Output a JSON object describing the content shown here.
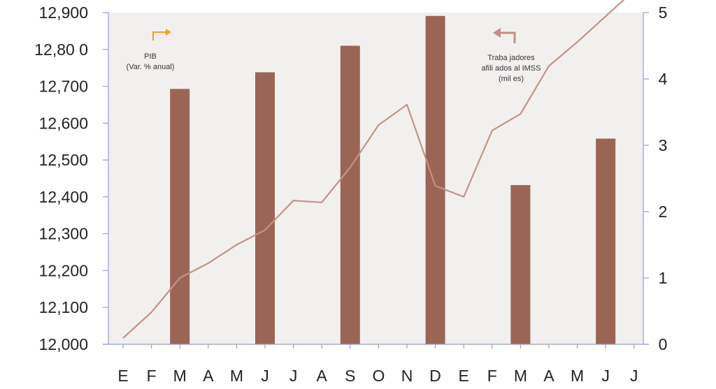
{
  "colors": {
    "plot_bg": "#f2f0ef",
    "axis": "#9b9ad6",
    "bar": "#9b6556",
    "line": "#c49284",
    "pib_arrow": "#f0a02a",
    "imss_arrow": "#c28e83",
    "tick_text": "#222222",
    "annotation_text": "#333333"
  },
  "chart_data": {
    "type": "bar",
    "categories": [
      "E",
      "F",
      "M",
      "A",
      "M",
      "J",
      "J",
      "A",
      "S",
      "O",
      "N",
      "D",
      "E",
      "F",
      "M",
      "A",
      "M",
      "J",
      "J"
    ],
    "series": [
      {
        "name": "PIB (Var. % anual)",
        "type": "bar",
        "axis": "right",
        "values": [
          null,
          null,
          3.85,
          null,
          null,
          4.1,
          null,
          null,
          4.5,
          null,
          null,
          4.95,
          null,
          null,
          2.4,
          null,
          null,
          3.1,
          null
        ]
      },
      {
        "name": "Trabajadores afiliados al IMSS (miles)",
        "type": "line",
        "axis": "left",
        "values": [
          12017,
          12087,
          12180,
          12220,
          12270,
          12310,
          12390,
          12385,
          12480,
          12595,
          12650,
          12430,
          12400,
          12580,
          12625,
          12755,
          12820,
          12890,
          12960
        ]
      }
    ],
    "left_axis": {
      "ylim": [
        12000,
        12900
      ],
      "ticks": [
        12000,
        12100,
        12200,
        12300,
        12400,
        12500,
        12600,
        12700,
        12800,
        12900
      ],
      "tick_labels": [
        "12,000",
        "12,100",
        "12,200",
        "12,300",
        "12,400",
        "12,500",
        "12,600",
        "12,700",
        "12,80 0",
        "12,900"
      ]
    },
    "right_axis": {
      "ylim": [
        0,
        5
      ],
      "ticks": [
        0,
        1,
        2,
        3,
        4,
        5
      ],
      "tick_labels": [
        "0",
        "1",
        "2",
        "3",
        "4",
        "5"
      ]
    },
    "annotations": {
      "pib": [
        "PIB",
        "(Var. % anual)"
      ],
      "imss": [
        "Traba jadores",
        "afili ados al IMSS",
        "(mil es)"
      ]
    },
    "grid": false,
    "legend": "none"
  }
}
